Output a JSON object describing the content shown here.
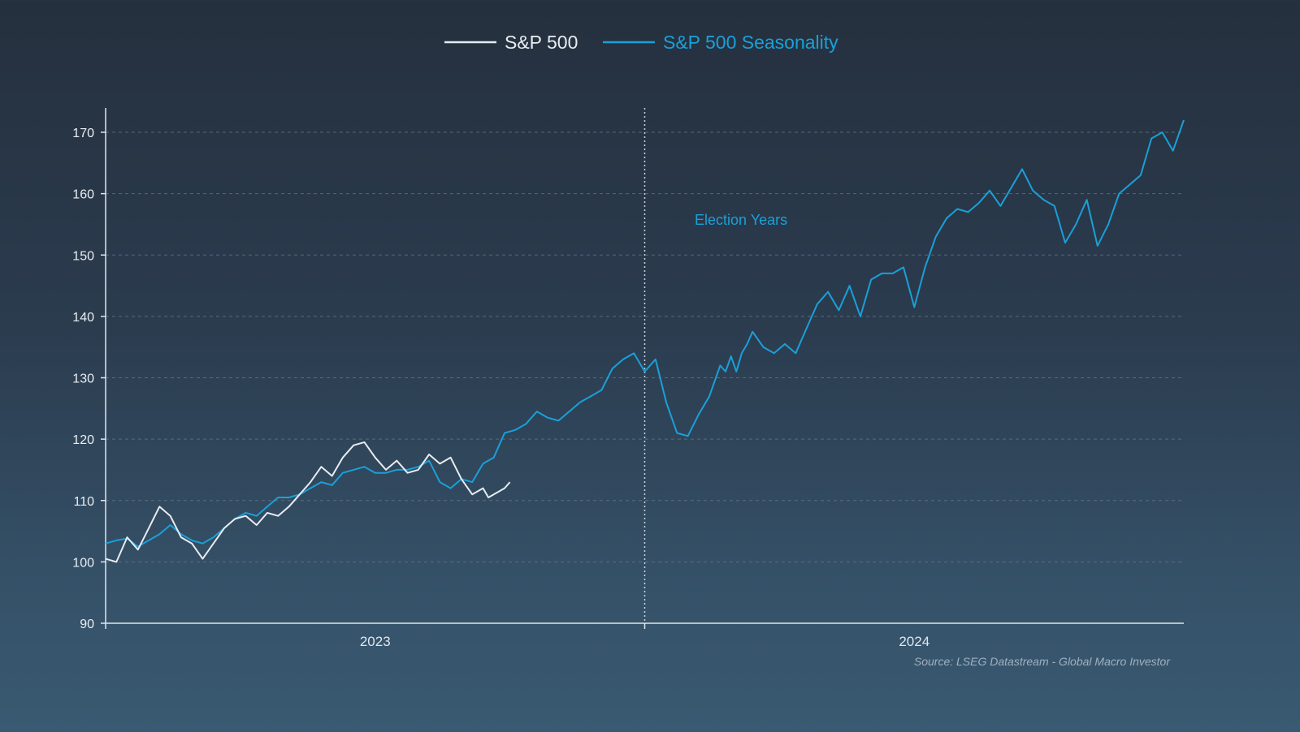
{
  "chart_data": {
    "type": "line",
    "title": "",
    "xlabel": "",
    "ylabel": "",
    "ylim": [
      90,
      175
    ],
    "yticks": [
      90,
      100,
      110,
      120,
      130,
      140,
      150,
      160,
      170
    ],
    "x_axis": {
      "range_years": [
        2023,
        2025
      ],
      "divider_at": 2024,
      "tick_labels": [
        "2023",
        "2024"
      ],
      "tick_label_positions": [
        2023.5,
        2024.5
      ]
    },
    "grid": "horizontal dashed",
    "legend_placement": "top-center",
    "annotation": "Election Years",
    "source": "Source: LSEG Datastream - Global Macro Investor",
    "series": [
      {
        "name": "S&P 500",
        "color": "#e8ecf2",
        "x": [
          2023.0,
          2023.02,
          2023.04,
          2023.06,
          2023.08,
          2023.1,
          2023.12,
          2023.14,
          2023.16,
          2023.18,
          2023.2,
          2023.22,
          2023.24,
          2023.26,
          2023.28,
          2023.3,
          2023.32,
          2023.34,
          2023.36,
          2023.38,
          2023.4,
          2023.42,
          2023.44,
          2023.46,
          2023.48,
          2023.5,
          2023.52,
          2023.54,
          2023.56,
          2023.58,
          2023.6,
          2023.62,
          2023.64,
          2023.66,
          2023.68,
          2023.7,
          2023.71,
          2023.72,
          2023.74,
          2023.75
        ],
        "values": [
          100.5,
          100.0,
          104.0,
          102.0,
          105.5,
          109.0,
          107.5,
          104.0,
          103.0,
          100.5,
          103.0,
          105.5,
          107.0,
          107.5,
          106.0,
          108.0,
          107.5,
          109.0,
          111.0,
          113.0,
          115.5,
          114.0,
          117.0,
          119.0,
          119.5,
          117.0,
          115.0,
          116.5,
          114.5,
          115.0,
          117.5,
          116.0,
          117.0,
          113.5,
          111.0,
          112.0,
          110.5,
          111.0,
          112.0,
          113.0
        ]
      },
      {
        "name": "S&P 500 Seasonality",
        "color": "#1aa0d8",
        "x": [
          2023.0,
          2023.02,
          2023.04,
          2023.06,
          2023.08,
          2023.1,
          2023.12,
          2023.14,
          2023.16,
          2023.18,
          2023.2,
          2023.22,
          2023.24,
          2023.26,
          2023.28,
          2023.3,
          2023.32,
          2023.34,
          2023.36,
          2023.38,
          2023.4,
          2023.42,
          2023.44,
          2023.46,
          2023.48,
          2023.5,
          2023.52,
          2023.54,
          2023.56,
          2023.58,
          2023.6,
          2023.62,
          2023.64,
          2023.66,
          2023.68,
          2023.7,
          2023.72,
          2023.74,
          2023.76,
          2023.78,
          2023.8,
          2023.82,
          2023.84,
          2023.86,
          2023.88,
          2023.9,
          2023.92,
          2023.94,
          2023.96,
          2023.98,
          2024.0,
          2024.02,
          2024.04,
          2024.06,
          2024.08,
          2024.1,
          2024.12,
          2024.14,
          2024.15,
          2024.16,
          2024.17,
          2024.18,
          2024.19,
          2024.2,
          2024.22,
          2024.24,
          2024.26,
          2024.28,
          2024.3,
          2024.32,
          2024.34,
          2024.36,
          2024.38,
          2024.4,
          2024.42,
          2024.44,
          2024.46,
          2024.48,
          2024.5,
          2024.52,
          2024.54,
          2024.56,
          2024.58,
          2024.6,
          2024.62,
          2024.64,
          2024.66,
          2024.68,
          2024.7,
          2024.72,
          2024.74,
          2024.76,
          2024.78,
          2024.8,
          2024.82,
          2024.84,
          2024.86,
          2024.88,
          2024.9,
          2024.92,
          2024.94,
          2024.96,
          2024.98,
          2025.0
        ],
        "values": [
          103.0,
          103.5,
          103.8,
          102.5,
          103.5,
          104.5,
          106.0,
          104.5,
          103.5,
          103.0,
          104.0,
          105.5,
          107.0,
          108.0,
          107.5,
          109.0,
          110.5,
          110.5,
          111.0,
          112.0,
          113.0,
          112.5,
          114.5,
          115.0,
          115.5,
          114.5,
          114.5,
          115.0,
          115.0,
          115.5,
          116.5,
          113.0,
          112.0,
          113.5,
          113.0,
          116.0,
          117.0,
          121.0,
          121.5,
          122.5,
          124.5,
          123.5,
          123.0,
          124.5,
          126.0,
          127.0,
          128.0,
          131.5,
          133.0,
          134.0,
          131.0,
          133.0,
          126.0,
          121.0,
          120.5,
          124.0,
          127.0,
          132.0,
          131.0,
          133.5,
          131.0,
          134.0,
          135.5,
          137.5,
          135.0,
          134.0,
          135.5,
          134.0,
          138.0,
          142.0,
          144.0,
          141.0,
          145.0,
          140.0,
          146.0,
          147.0,
          147.0,
          148.0,
          141.5,
          148.0,
          153.0,
          156.0,
          157.5,
          157.0,
          158.5,
          160.5,
          158.0,
          161.0,
          164.0,
          160.5,
          159.0,
          158.0,
          152.0,
          155.0,
          159.0,
          151.5,
          155.0,
          160.0,
          161.5,
          163.0,
          169.0,
          170.0,
          167.0,
          172.0
        ]
      }
    ]
  }
}
